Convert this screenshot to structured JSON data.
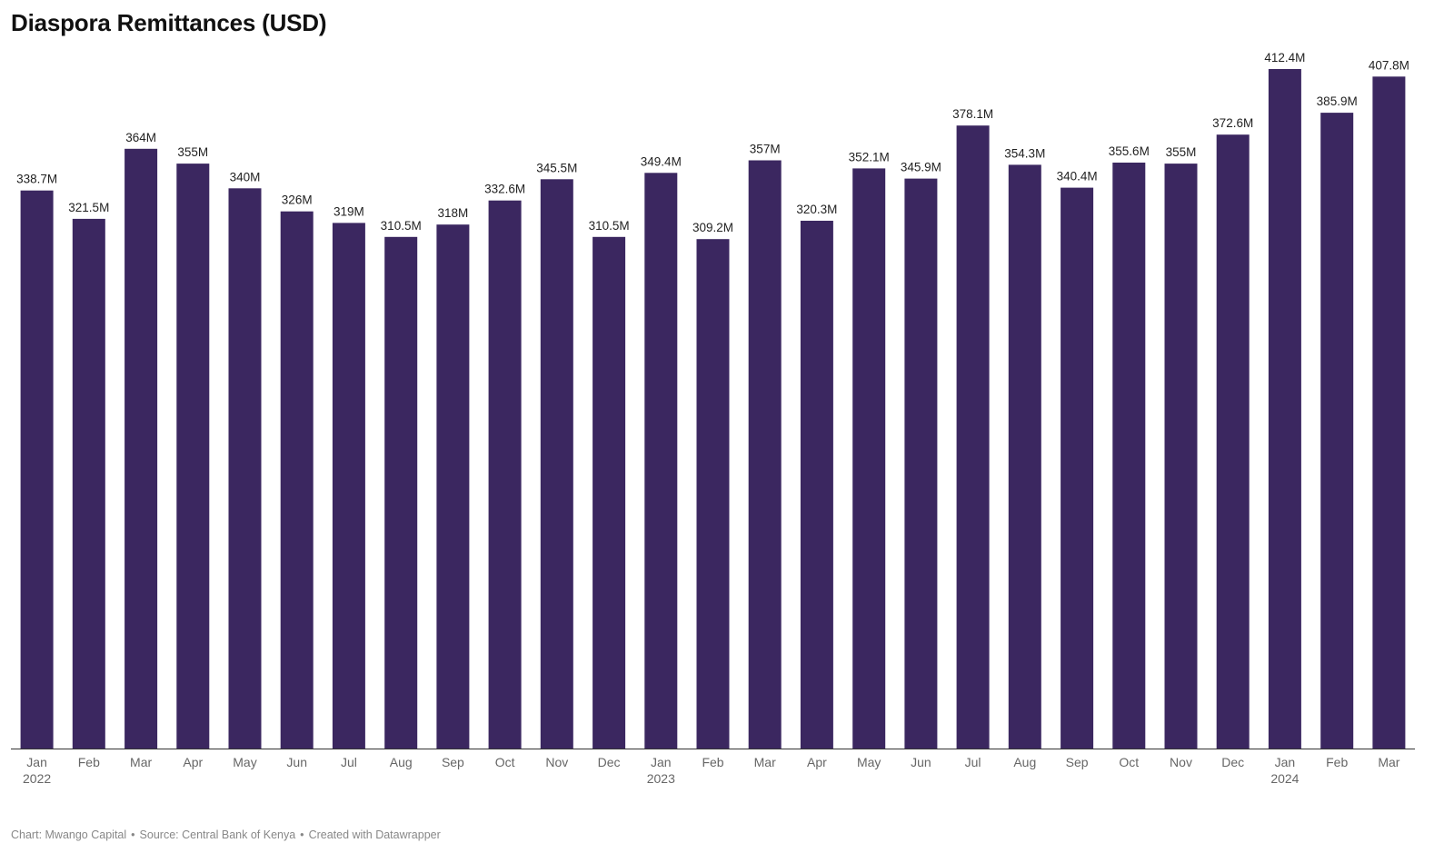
{
  "chart_data": {
    "type": "bar",
    "title": "Diaspora Remittances (USD)",
    "xlabel": "",
    "ylabel": "",
    "ylim": [
      0,
      412.4
    ],
    "grid": false,
    "bar_color": "#3b2760",
    "baseline_color": "#333333",
    "categories": [
      "Jan",
      "Feb",
      "Mar",
      "Apr",
      "May",
      "Jun",
      "Jul",
      "Aug",
      "Sep",
      "Oct",
      "Nov",
      "Dec",
      "Jan",
      "Feb",
      "Mar",
      "Apr",
      "May",
      "Jun",
      "Jul",
      "Aug",
      "Sep",
      "Oct",
      "Nov",
      "Dec",
      "Jan",
      "Feb",
      "Mar"
    ],
    "year_labels": [
      "2022",
      "",
      "",
      "",
      "",
      "",
      "",
      "",
      "",
      "",
      "",
      "",
      "2023",
      "",
      "",
      "",
      "",
      "",
      "",
      "",
      "",
      "",
      "",
      "",
      "2024",
      "",
      ""
    ],
    "values": [
      338.7,
      321.5,
      364,
      355,
      340,
      326,
      319,
      310.5,
      318,
      332.6,
      345.5,
      310.5,
      349.4,
      309.2,
      357,
      320.3,
      352.1,
      345.9,
      378.1,
      354.3,
      340.4,
      355.6,
      355,
      372.6,
      412.4,
      385.9,
      407.8
    ],
    "value_labels": [
      "338.7M",
      "321.5M",
      "364M",
      "355M",
      "340M",
      "326M",
      "319M",
      "310.5M",
      "318M",
      "332.6M",
      "345.5M",
      "310.5M",
      "349.4M",
      "309.2M",
      "357M",
      "320.3M",
      "352.1M",
      "345.9M",
      "378.1M",
      "354.3M",
      "340.4M",
      "355.6M",
      "355M",
      "372.6M",
      "412.4M",
      "385.9M",
      "407.8M"
    ]
  },
  "footer": {
    "chart_credit": "Chart: Mwango Capital",
    "source": "Source: Central Bank of Kenya",
    "created_with": "Created with Datawrapper",
    "separator": "•"
  }
}
